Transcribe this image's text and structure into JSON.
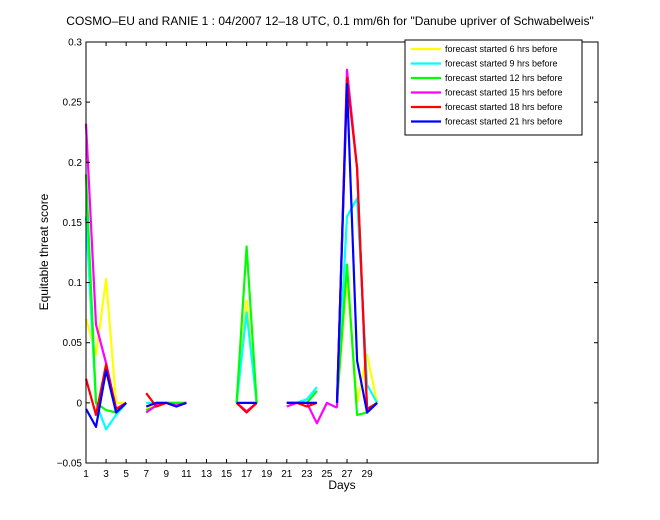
{
  "chart_data": {
    "type": "line",
    "title": "COSMO–EU and RANIE 1 : 04/2007 12–18 UTC, 0.1 mm/6h for \"Danube upriver of Schwabelweis\"",
    "xlabel": "Days",
    "ylabel": "Equitable threat score",
    "xlim": [
      1,
      52
    ],
    "ylim": [
      -0.05,
      0.3
    ],
    "xticks": [
      "1",
      "3",
      "5",
      "7",
      "9",
      "11",
      "13",
      "15",
      "17",
      "19",
      "21",
      "23",
      "25",
      "27",
      "29"
    ],
    "yticks": [
      "−0.05",
      "0",
      "0.05",
      "0.1",
      "0.15",
      "0.2",
      "0.25",
      "0.3"
    ],
    "grid": false,
    "legend_position": "top-right",
    "series": [
      {
        "name": "forecast started 6 hrs before",
        "color": "#ffff00",
        "segments": [
          {
            "x": [
              1,
              2,
              3,
              4,
              5
            ],
            "y": [
              0.07,
              0.04,
              0.103,
              0.0,
              0.0
            ]
          },
          {
            "x": [
              7,
              8,
              9,
              10,
              11
            ],
            "y": [
              -0.005,
              0.0,
              0.0,
              0.0,
              0.0
            ]
          },
          {
            "x": [
              16,
              17,
              18
            ],
            "y": [
              0.0,
              0.085,
              0.0
            ]
          },
          {
            "x": [
              21,
              22,
              23,
              24
            ],
            "y": [
              0.0,
              0.0,
              0.0,
              0.0
            ]
          },
          {
            "x": [
              26,
              27,
              28,
              29,
              30
            ],
            "y": [
              0.0,
              0.105,
              0.0,
              0.04,
              0.0
            ]
          }
        ]
      },
      {
        "name": "forecast started 9 hrs before",
        "color": "#00ffff",
        "segments": [
          {
            "x": [
              1,
              2,
              3,
              4,
              5
            ],
            "y": [
              0.155,
              0.0,
              -0.022,
              -0.01,
              0.0
            ]
          },
          {
            "x": [
              7,
              8,
              9,
              10,
              11
            ],
            "y": [
              0.0,
              0.0,
              0.0,
              0.0,
              0.0
            ]
          },
          {
            "x": [
              16,
              17,
              18
            ],
            "y": [
              0.0,
              0.075,
              0.0
            ]
          },
          {
            "x": [
              21,
              22,
              23,
              24
            ],
            "y": [
              0.0,
              0.0,
              0.003,
              0.013
            ]
          },
          {
            "x": [
              26,
              27,
              28,
              29,
              30
            ],
            "y": [
              0.0,
              0.155,
              0.17,
              0.015,
              0.0
            ]
          }
        ]
      },
      {
        "name": "forecast started 12 hrs before",
        "color": "#00ff00",
        "segments": [
          {
            "x": [
              1,
              2,
              3,
              4,
              5
            ],
            "y": [
              0.19,
              0.0,
              -0.006,
              -0.008,
              0.0
            ]
          },
          {
            "x": [
              7,
              8,
              9,
              10,
              11
            ],
            "y": [
              -0.006,
              -0.003,
              0.0,
              0.0,
              0.0
            ]
          },
          {
            "x": [
              16,
              17,
              18
            ],
            "y": [
              0.0,
              0.13,
              0.0
            ]
          },
          {
            "x": [
              21,
              22,
              23,
              24
            ],
            "y": [
              0.0,
              0.0,
              0.0,
              0.01
            ]
          },
          {
            "x": [
              26,
              27,
              28,
              29,
              30
            ],
            "y": [
              0.0,
              0.115,
              -0.01,
              -0.008,
              0.0
            ]
          }
        ]
      },
      {
        "name": "forecast started 15 hrs before",
        "color": "#ff00ff",
        "segments": [
          {
            "x": [
              1,
              2,
              3,
              4,
              5
            ],
            "y": [
              0.232,
              0.065,
              0.033,
              -0.005,
              0.0
            ]
          },
          {
            "x": [
              7,
              8,
              9,
              10,
              11
            ],
            "y": [
              -0.008,
              -0.002,
              0.0,
              -0.002,
              0.0
            ]
          },
          {
            "x": [
              16,
              17,
              18
            ],
            "y": [
              0.0,
              -0.007,
              0.0
            ]
          },
          {
            "x": [
              21,
              22,
              23,
              24,
              25,
              26
            ],
            "y": [
              -0.003,
              0.0,
              0.0,
              -0.017,
              0.0,
              -0.004
            ]
          },
          {
            "x": [
              26,
              27,
              28,
              29,
              30
            ],
            "y": [
              -0.004,
              0.277,
              0.195,
              -0.008,
              0.0
            ]
          }
        ]
      },
      {
        "name": "forecast started 18 hrs before",
        "color": "#ff0000",
        "segments": [
          {
            "x": [
              1,
              2,
              3,
              4,
              5
            ],
            "y": [
              0.02,
              -0.01,
              0.032,
              -0.005,
              0.0
            ]
          },
          {
            "x": [
              7,
              8,
              9,
              10,
              11
            ],
            "y": [
              0.008,
              -0.003,
              0.0,
              -0.003,
              0.0
            ]
          },
          {
            "x": [
              16,
              17,
              18
            ],
            "y": [
              0.0,
              -0.008,
              0.0
            ]
          },
          {
            "x": [
              21,
              22,
              23,
              24
            ],
            "y": [
              0.0,
              0.0,
              -0.003,
              0.0
            ]
          },
          {
            "x": [
              26,
              27,
              28,
              29,
              30
            ],
            "y": [
              0.0,
              0.27,
              0.195,
              -0.005,
              0.0
            ]
          }
        ]
      },
      {
        "name": "forecast started 21 hrs before",
        "color": "#0000ff",
        "segments": [
          {
            "x": [
              1,
              2,
              3,
              4,
              5
            ],
            "y": [
              -0.005,
              -0.02,
              0.027,
              -0.008,
              0.0
            ]
          },
          {
            "x": [
              7,
              8,
              9,
              10,
              11
            ],
            "y": [
              -0.003,
              0.0,
              0.0,
              -0.003,
              0.0
            ]
          },
          {
            "x": [
              16,
              17,
              18
            ],
            "y": [
              0.0,
              0.0,
              0.0
            ]
          },
          {
            "x": [
              21,
              22,
              23,
              24
            ],
            "y": [
              0.0,
              0.0,
              0.0,
              0.0
            ]
          },
          {
            "x": [
              26,
              27,
              28,
              29,
              30
            ],
            "y": [
              0.0,
              0.265,
              0.035,
              -0.008,
              0.0
            ]
          }
        ]
      }
    ]
  }
}
